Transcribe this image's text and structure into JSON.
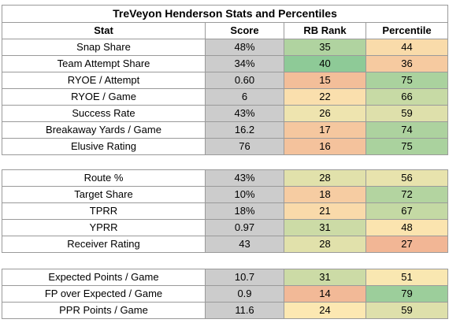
{
  "title": "TreVeyon Henderson Stats and Percentiles",
  "headers": {
    "stat": "Stat",
    "score": "Score",
    "rank": "RB Rank",
    "percentile": "Percentile"
  },
  "colors": {
    "score_fill": "#cccccc",
    "scale_low": "#e67c73",
    "scale_mid": "#fce8b2",
    "scale_high": "#57bb8a"
  },
  "groups": [
    {
      "name": "usage",
      "rows": [
        {
          "stat": "Snap Share",
          "score": "48%",
          "rank": "35",
          "percentile": "44"
        },
        {
          "stat": "Team Attempt Share",
          "score": "34%",
          "rank": "40",
          "percentile": "36"
        },
        {
          "stat": "RYOE / Attempt",
          "score": "0.60",
          "rank": "15",
          "percentile": "75"
        },
        {
          "stat": "RYOE / Game",
          "score": "6",
          "rank": "22",
          "percentile": "66"
        },
        {
          "stat": "Success Rate",
          "score": "43%",
          "rank": "26",
          "percentile": "59"
        },
        {
          "stat": "Breakaway Yards / Game",
          "score": "16.2",
          "rank": "17",
          "percentile": "74"
        },
        {
          "stat": "Elusive Rating",
          "score": "76",
          "rank": "16",
          "percentile": "75"
        }
      ]
    },
    {
      "name": "receiving",
      "rows": [
        {
          "stat": "Route %",
          "score": "43%",
          "rank": "28",
          "percentile": "56"
        },
        {
          "stat": "Target Share",
          "score": "10%",
          "rank": "18",
          "percentile": "72"
        },
        {
          "stat": "TPRR",
          "score": "18%",
          "rank": "21",
          "percentile": "67"
        },
        {
          "stat": "YPRR",
          "score": "0.97",
          "rank": "31",
          "percentile": "48"
        },
        {
          "stat": "Receiver Rating",
          "score": "43",
          "rank": "28",
          "percentile": "27"
        }
      ]
    },
    {
      "name": "points",
      "rows": [
        {
          "stat": "Expected Points / Game",
          "score": "10.7",
          "rank": "31",
          "percentile": "51"
        },
        {
          "stat": "FP over Expected / Game",
          "score": "0.9",
          "rank": "14",
          "percentile": "79"
        },
        {
          "stat": "PPR Points / Game",
          "score": "11.6",
          "rank": "24",
          "percentile": "59"
        }
      ]
    }
  ]
}
